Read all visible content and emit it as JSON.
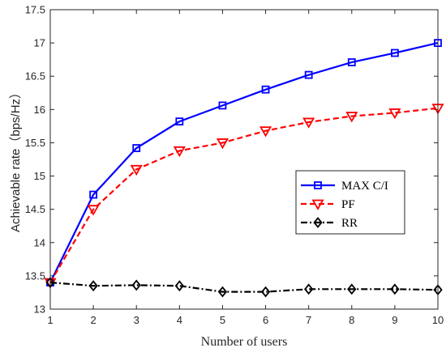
{
  "chart_data": {
    "type": "line",
    "title": "",
    "xlabel": "Number of users",
    "ylabel": "Achievable rate（bps/Hz）",
    "x": [
      1,
      2,
      3,
      4,
      5,
      6,
      7,
      8,
      9,
      10
    ],
    "xlim": [
      1,
      10
    ],
    "ylim": [
      13,
      17.5
    ],
    "xticks": [
      "1",
      "2",
      "3",
      "4",
      "5",
      "6",
      "7",
      "8",
      "9",
      "10"
    ],
    "yticks": [
      "13",
      "13.5",
      "14",
      "14.5",
      "15",
      "15.5",
      "16",
      "16.5",
      "17",
      "17.5"
    ],
    "ytick_values": [
      13,
      13.5,
      14,
      14.5,
      15,
      15.5,
      16,
      16.5,
      17,
      17.5
    ],
    "grid": false,
    "legend_position": "center-right",
    "series": [
      {
        "name": "MAX C/I",
        "color": "#0000ff",
        "line": "solid",
        "marker": "square",
        "values": [
          13.4,
          14.72,
          15.42,
          15.82,
          16.06,
          16.3,
          16.52,
          16.71,
          16.85,
          17.0
        ]
      },
      {
        "name": "PF",
        "color": "#ff0000",
        "line": "dashed",
        "marker": "triangle-down",
        "values": [
          13.4,
          14.5,
          15.1,
          15.38,
          15.5,
          15.68,
          15.81,
          15.9,
          15.95,
          16.02
        ]
      },
      {
        "name": "RR",
        "color": "#000000",
        "line": "dashdot",
        "marker": "diamond",
        "values": [
          13.4,
          13.35,
          13.36,
          13.35,
          13.26,
          13.26,
          13.3,
          13.3,
          13.3,
          13.29
        ]
      }
    ]
  }
}
